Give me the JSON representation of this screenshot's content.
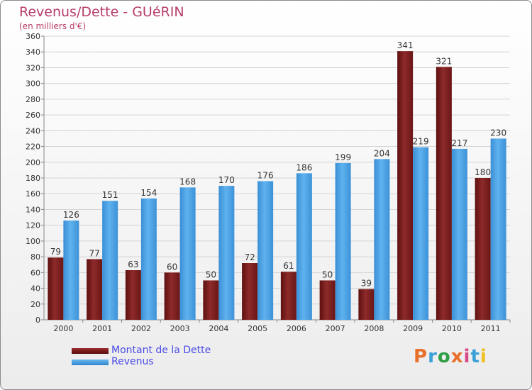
{
  "chart_data": {
    "type": "bar",
    "title": "Revenus/Dette - GUéRIN",
    "subtitle": "(en milliers d'€)",
    "categories": [
      "2000",
      "2001",
      "2002",
      "2003",
      "2004",
      "2005",
      "2006",
      "2007",
      "2008",
      "2009",
      "2010",
      "2011"
    ],
    "series": [
      {
        "name": "Montant de la Dette",
        "color": "#7a1e1e",
        "values": [
          79,
          77,
          63,
          60,
          50,
          72,
          61,
          50,
          39,
          341,
          321,
          180
        ]
      },
      {
        "name": "Revenus",
        "color": "#4aa3e8",
        "values": [
          126,
          151,
          154,
          168,
          170,
          176,
          186,
          199,
          204,
          219,
          217,
          230
        ]
      }
    ],
    "ylim": [
      0,
      360
    ],
    "yticks": [
      0,
      20,
      40,
      60,
      80,
      100,
      120,
      140,
      160,
      180,
      200,
      220,
      240,
      260,
      280,
      300,
      320,
      340,
      360
    ],
    "grid": true,
    "legend_position": "bottom-left"
  },
  "brand": {
    "letters": [
      "P",
      "r",
      "o",
      "x",
      "i",
      "t",
      "i"
    ],
    "colors": [
      "#e8702a",
      "#3aa0d8",
      "#2f9e44",
      "#e8702a",
      "#d84a8a",
      "#3aa0d8",
      "#f0c020"
    ]
  }
}
